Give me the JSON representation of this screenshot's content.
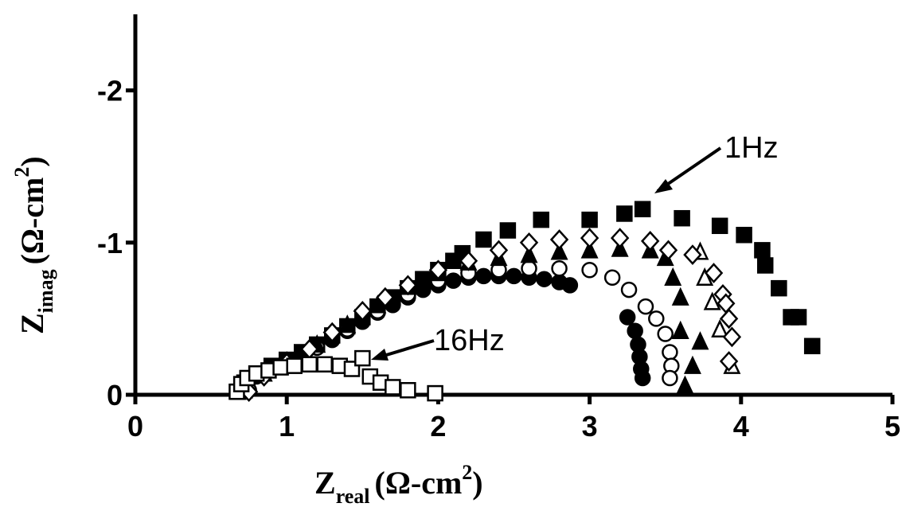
{
  "chart_data": {
    "type": "scatter",
    "xlabel": [
      "Z",
      "real",
      "(Ω-cm",
      "2",
      ")"
    ],
    "ylabel": [
      "Z",
      "imag",
      "(Ω-cm",
      "2",
      ")"
    ],
    "annotations": [
      "1Hz",
      "16Hz"
    ],
    "xlim": [
      0,
      5
    ],
    "xticks": [
      0,
      1,
      2,
      3,
      4,
      5
    ],
    "ylim": [
      0,
      -2.5
    ],
    "yticks": [
      0,
      -1,
      -2
    ],
    "series": [
      {
        "marker": "square",
        "filled": true,
        "color": "#000000",
        "x": [
          0.68,
          0.72,
          0.8,
          0.9,
          1.0,
          1.1,
          1.2,
          1.3,
          1.4,
          1.5,
          1.6,
          1.7,
          1.8,
          1.9,
          2.0,
          2.1,
          2.16,
          2.3,
          2.46,
          2.68,
          3.0,
          3.23,
          3.35,
          3.61,
          3.86,
          4.02,
          4.14,
          4.16,
          4.25,
          4.33,
          4.38,
          4.47
        ],
        "y": [
          -0.02,
          -0.08,
          -0.14,
          -0.19,
          -0.23,
          -0.28,
          -0.33,
          -0.39,
          -0.45,
          -0.51,
          -0.58,
          -0.64,
          -0.7,
          -0.76,
          -0.82,
          -0.88,
          -0.93,
          -1.02,
          -1.08,
          -1.15,
          -1.15,
          -1.19,
          -1.22,
          -1.16,
          -1.11,
          -1.05,
          -0.95,
          -0.85,
          -0.7,
          -0.51,
          -0.51,
          -0.32
        ]
      },
      {
        "marker": "circle",
        "filled": true,
        "color": "#000000",
        "x": [
          0.7,
          0.8,
          0.9,
          1.0,
          1.1,
          1.2,
          1.3,
          1.4,
          1.5,
          1.6,
          1.7,
          1.8,
          1.9,
          2.0,
          2.1,
          2.2,
          2.3,
          2.4,
          2.5,
          2.6,
          2.7,
          2.8,
          2.87,
          3.25,
          3.3,
          3.32,
          3.33,
          3.34,
          3.35
        ],
        "y": [
          -0.03,
          -0.12,
          -0.17,
          -0.21,
          -0.26,
          -0.31,
          -0.36,
          -0.42,
          -0.48,
          -0.54,
          -0.59,
          -0.64,
          -0.69,
          -0.72,
          -0.75,
          -0.77,
          -0.78,
          -0.78,
          -0.78,
          -0.77,
          -0.76,
          -0.74,
          -0.72,
          -0.51,
          -0.42,
          -0.33,
          -0.25,
          -0.17,
          -0.11
        ]
      },
      {
        "marker": "circle",
        "filled": false,
        "color": "#000000",
        "x": [
          0.75,
          0.85,
          1.0,
          1.2,
          1.4,
          1.6,
          1.8,
          2.0,
          2.2,
          2.4,
          2.6,
          2.8,
          3.0,
          3.15,
          3.26,
          3.37,
          3.44,
          3.5,
          3.53,
          3.54,
          3.53
        ],
        "y": [
          -0.03,
          -0.13,
          -0.21,
          -0.31,
          -0.43,
          -0.55,
          -0.66,
          -0.75,
          -0.8,
          -0.82,
          -0.83,
          -0.83,
          -0.82,
          -0.77,
          -0.69,
          -0.58,
          -0.5,
          -0.4,
          -0.28,
          -0.19,
          -0.11
        ]
      },
      {
        "marker": "triangle",
        "filled": true,
        "color": "#000000",
        "x": [
          0.72,
          0.85,
          1.0,
          1.2,
          1.4,
          1.6,
          1.8,
          2.0,
          2.2,
          2.4,
          2.6,
          2.8,
          3.0,
          3.2,
          3.4,
          3.5,
          3.55,
          3.6,
          3.6,
          3.73,
          3.68,
          3.63
        ],
        "y": [
          -0.03,
          -0.14,
          -0.22,
          -0.33,
          -0.46,
          -0.59,
          -0.71,
          -0.8,
          -0.87,
          -0.9,
          -0.92,
          -0.94,
          -0.95,
          -0.96,
          -0.95,
          -0.9,
          -0.77,
          -0.64,
          -0.42,
          -0.35,
          -0.19,
          -0.06
        ]
      },
      {
        "marker": "triangle",
        "filled": false,
        "color": "#000000",
        "x": [
          3.73,
          3.76,
          3.81,
          3.86,
          3.94
        ],
        "y": [
          -0.94,
          -0.77,
          -0.61,
          -0.43,
          -0.19
        ]
      },
      {
        "marker": "diamond",
        "filled": false,
        "color": "#000000",
        "x": [
          0.75,
          0.85,
          1.0,
          1.15,
          1.3,
          1.5,
          1.65,
          1.8,
          2.0,
          2.2,
          2.4,
          2.6,
          2.8,
          3.0,
          3.2,
          3.4,
          3.52,
          3.68,
          3.82,
          3.88,
          3.9,
          3.92,
          3.94,
          3.92
        ],
        "y": [
          -0.02,
          -0.12,
          -0.21,
          -0.3,
          -0.41,
          -0.55,
          -0.64,
          -0.72,
          -0.82,
          -0.88,
          -0.95,
          -1.0,
          -1.02,
          -1.03,
          -1.03,
          -1.01,
          -0.95,
          -0.92,
          -0.8,
          -0.66,
          -0.6,
          -0.5,
          -0.38,
          -0.22
        ]
      },
      {
        "marker": "square",
        "filled": false,
        "color": "#000000",
        "x": [
          0.67,
          0.7,
          0.74,
          0.8,
          0.88,
          0.96,
          1.05,
          1.15,
          1.25,
          1.35,
          1.43,
          1.5,
          1.55,
          1.62,
          1.7,
          1.8,
          1.98
        ],
        "y": [
          -0.02,
          -0.07,
          -0.11,
          -0.14,
          -0.16,
          -0.18,
          -0.19,
          -0.2,
          -0.2,
          -0.19,
          -0.17,
          -0.24,
          -0.12,
          -0.08,
          -0.05,
          -0.03,
          -0.01
        ]
      }
    ]
  }
}
